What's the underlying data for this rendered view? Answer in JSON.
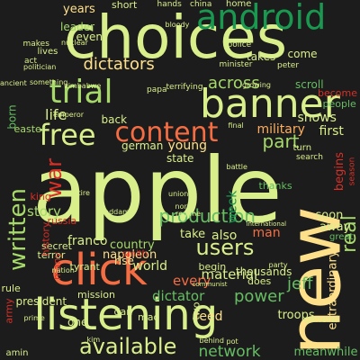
{
  "background": "#1c1c1c",
  "palette": {
    "yellow": "#fee08b",
    "cream": "#ffffbf",
    "pale_green": "#d9ef8b",
    "light_green": "#a6d96a",
    "green": "#66bd63",
    "dark_green": "#1a9850",
    "orange": "#fdae61",
    "red_orange": "#f46d43",
    "red": "#d73027"
  },
  "words": [
    {
      "text": "choices",
      "color": "#d9ef8b",
      "vertical": false
    },
    {
      "text": "apple",
      "color": "#d9ef8b",
      "vertical": false
    },
    {
      "text": "new",
      "color": "#fee08b",
      "vertical": true
    },
    {
      "text": "listening",
      "color": "#d9ef8b",
      "vertical": false
    },
    {
      "text": "banner",
      "color": "#d9ef8b",
      "vertical": false
    },
    {
      "text": "android",
      "color": "#1a9850",
      "vertical": false
    },
    {
      "text": "click",
      "color": "#f46d43",
      "vertical": false
    },
    {
      "text": "trial",
      "color": "#a6d96a",
      "vertical": false
    },
    {
      "text": "free",
      "color": "#d9ef8b",
      "vertical": false
    },
    {
      "text": "content",
      "color": "#f46d43",
      "vertical": false
    },
    {
      "text": "production",
      "color": "#66bd63",
      "vertical": false
    },
    {
      "text": "users",
      "color": "#d9ef8b",
      "vertical": false
    },
    {
      "text": "available",
      "color": "#d9ef8b",
      "vertical": false
    },
    {
      "text": "written",
      "color": "#a6d96a",
      "vertical": true
    },
    {
      "text": "dictators",
      "color": "#fee08b",
      "vertical": false
    },
    {
      "text": "part",
      "color": "#a6d96a",
      "vertical": false
    },
    {
      "text": "war",
      "color": "#d73027",
      "vertical": true
    },
    {
      "text": "across",
      "color": "#a6d96a",
      "vertical": false
    },
    {
      "text": "network",
      "color": "#66bd63",
      "vertical": false
    },
    {
      "text": "power",
      "color": "#66bd63",
      "vertical": false
    },
    {
      "text": "jeff",
      "color": "#66bd63",
      "vertical": false
    },
    {
      "text": "dictator",
      "color": "#66bd63",
      "vertical": false
    },
    {
      "text": "life",
      "color": "#d9ef8b",
      "vertical": false
    },
    {
      "text": "story",
      "color": "#a6d96a",
      "vertical": false
    },
    {
      "text": "shows",
      "color": "#d9ef8b",
      "vertical": false
    },
    {
      "text": "military",
      "color": "#fdae61",
      "vertical": false
    },
    {
      "text": "first",
      "color": "#d9ef8b",
      "vertical": false
    },
    {
      "text": "real",
      "color": "#a6d96a",
      "vertical": true
    },
    {
      "text": "week",
      "color": "#1a9850",
      "vertical": true
    },
    {
      "text": "material",
      "color": "#d9ef8b",
      "vertical": false
    },
    {
      "text": "feed",
      "color": "#fee08b",
      "vertical": false
    },
    {
      "text": "every",
      "color": "#f46d43",
      "vertical": false
    },
    {
      "text": "also",
      "color": "#d9ef8b",
      "vertical": false
    },
    {
      "text": "man",
      "color": "#f46d43",
      "vertical": false
    },
    {
      "text": "world",
      "color": "#d9ef8b",
      "vertical": false
    },
    {
      "text": "country",
      "color": "#a6d96a",
      "vertical": false
    },
    {
      "text": "napoleon",
      "color": "#fee08b",
      "vertical": false
    },
    {
      "text": "franco",
      "color": "#d9ef8b",
      "vertical": false
    },
    {
      "text": "take",
      "color": "#d9ef8b",
      "vertical": false
    },
    {
      "text": "young",
      "color": "#fee08b",
      "vertical": false
    },
    {
      "text": "soon",
      "color": "#d9ef8b",
      "vertical": false
    },
    {
      "text": "away",
      "color": "#d9ef8b",
      "vertical": false
    },
    {
      "text": "troops",
      "color": "#d9ef8b",
      "vertical": false
    },
    {
      "text": "meanwhile",
      "color": "#66bd63",
      "vertical": false
    },
    {
      "text": "extraordinary",
      "color": "#fee08b",
      "vertical": true
    },
    {
      "text": "thousands",
      "color": "#d9ef8b",
      "vertical": false
    },
    {
      "text": "begins",
      "color": "#d73027",
      "vertical": true
    },
    {
      "text": "years",
      "color": "#fee08b",
      "vertical": false
    },
    {
      "text": "leader",
      "color": "#a6d96a",
      "vertical": false
    },
    {
      "text": "even",
      "color": "#d9ef8b",
      "vertical": false
    },
    {
      "text": "takes",
      "color": "#d9ef8b",
      "vertical": false
    },
    {
      "text": "come",
      "color": "#d9ef8b",
      "vertical": false
    },
    {
      "text": "people",
      "color": "#66bd63",
      "vertical": false
    },
    {
      "text": "become",
      "color": "#d73027",
      "vertical": false
    },
    {
      "text": "scroll",
      "color": "#66bd63",
      "vertical": false
    },
    {
      "text": "back",
      "color": "#d9ef8b",
      "vertical": false
    },
    {
      "text": "german",
      "color": "#d9ef8b",
      "vertical": false
    },
    {
      "text": "state",
      "color": "#d9ef8b",
      "vertical": false
    },
    {
      "text": "mission",
      "color": "#d9ef8b",
      "vertical": false
    },
    {
      "text": "president",
      "color": "#d9ef8b",
      "vertical": false
    },
    {
      "text": "one",
      "color": "#d9ef8b",
      "vertical": false
    },
    {
      "text": "rise",
      "color": "#fee08b",
      "vertical": false
    },
    {
      "text": "begin",
      "color": "#d9ef8b",
      "vertical": false
    },
    {
      "text": "does",
      "color": "#d9ef8b",
      "vertical": false
    },
    {
      "text": "secret",
      "color": "#d9ef8b",
      "vertical": false
    },
    {
      "text": "terror",
      "color": "#d9ef8b",
      "vertical": false
    },
    {
      "text": "russia",
      "color": "#d73027",
      "vertical": false
    },
    {
      "text": "tyrant",
      "color": "#d9ef8b",
      "vertical": false
    },
    {
      "text": "smith",
      "color": "#d73027",
      "vertical": false
    },
    {
      "text": "dan",
      "color": "#d9ef8b",
      "vertical": false
    },
    {
      "text": "two",
      "color": "#d9ef8b",
      "vertical": true
    },
    {
      "text": "general",
      "color": "#d9ef8b",
      "vertical": false
    },
    {
      "text": "short",
      "color": "#d9ef8b",
      "vertical": false
    },
    {
      "text": "born",
      "color": "#66bd63",
      "vertical": true
    },
    {
      "text": "king",
      "color": "#d73027",
      "vertical": false
    },
    {
      "text": "mao",
      "color": "#d9ef8b",
      "vertical": false
    },
    {
      "text": "army",
      "color": "#d73027",
      "vertical": true
    },
    {
      "text": "rule",
      "color": "#d9ef8b",
      "vertical": false
    },
    {
      "text": "amin",
      "color": "#d9ef8b",
      "vertical": false
    },
    {
      "text": "history",
      "color": "#d73027",
      "vertical": true
    },
    {
      "text": "many",
      "color": "#d73027",
      "vertical": true
    },
    {
      "text": "great",
      "color": "#66bd63",
      "vertical": false
    },
    {
      "text": "turn",
      "color": "#d9ef8b",
      "vertical": false
    },
    {
      "text": "easter",
      "color": "#a6d96a",
      "vertical": false
    },
    {
      "text": "search",
      "color": "#d9ef8b",
      "vertical": false
    },
    {
      "text": "minister",
      "color": "#d9ef8b",
      "vertical": false
    },
    {
      "text": "home",
      "color": "#d9ef8b",
      "vertical": false
    },
    {
      "text": "china",
      "color": "#d9ef8b",
      "vertical": false
    },
    {
      "text": "hands",
      "color": "#d9ef8b",
      "vertical": false
    },
    {
      "text": "lives",
      "color": "#d9ef8b",
      "vertical": false
    },
    {
      "text": "makes",
      "color": "#d9ef8b",
      "vertical": false
    },
    {
      "text": "act",
      "color": "#d9ef8b",
      "vertical": false
    },
    {
      "text": "politician",
      "color": "#d9ef8b",
      "vertical": false
    },
    {
      "text": "papa",
      "color": "#d9ef8b",
      "vertical": false
    },
    {
      "text": "police",
      "color": "#d9ef8b",
      "vertical": false
    },
    {
      "text": "peter",
      "color": "#d9ef8b",
      "vertical": false
    },
    {
      "text": "nuclear",
      "color": "#d9ef8b",
      "vertical": false
    },
    {
      "text": "bloody",
      "color": "#d9ef8b",
      "vertical": false
    },
    {
      "text": "growing",
      "color": "#d9ef8b",
      "vertical": false
    },
    {
      "text": "emperor",
      "color": "#d9ef8b",
      "vertical": false
    },
    {
      "text": "terrifying",
      "color": "#d9ef8b",
      "vertical": false
    },
    {
      "text": "something",
      "color": "#d9ef8b",
      "vertical": false
    },
    {
      "text": "zimbabwe",
      "color": "#d9ef8b",
      "vertical": false
    },
    {
      "text": "final",
      "color": "#d9ef8b",
      "vertical": false
    },
    {
      "text": "battle",
      "color": "#d9ef8b",
      "vertical": false
    },
    {
      "text": "north",
      "color": "#d9ef8b",
      "vertical": false
    },
    {
      "text": "regime",
      "color": "#d9ef8b",
      "vertical": false
    },
    {
      "text": "union",
      "color": "#d9ef8b",
      "vertical": false
    },
    {
      "text": "international",
      "color": "#d9ef8b",
      "vertical": false
    },
    {
      "text": "entire",
      "color": "#d9ef8b",
      "vertical": false
    },
    {
      "text": "nation",
      "color": "#d9ef8b",
      "vertical": false
    },
    {
      "text": "communist",
      "color": "#d9ef8b",
      "vertical": false
    },
    {
      "text": "prime",
      "color": "#d9ef8b",
      "vertical": false
    },
    {
      "text": "behind",
      "color": "#d9ef8b",
      "vertical": false
    },
    {
      "text": "pot",
      "color": "#d9ef8b",
      "vertical": false
    },
    {
      "text": "season",
      "color": "#d73027",
      "vertical": true
    },
    {
      "text": "party",
      "color": "#d9ef8b",
      "vertical": false
    },
    {
      "text": "saddam",
      "color": "#d9ef8b",
      "vertical": false
    },
    {
      "text": "ancient",
      "color": "#d9ef8b",
      "vertical": false
    },
    {
      "text": "kim",
      "color": "#d9ef8b",
      "vertical": false
    },
    {
      "text": "thanks",
      "color": "#66bd63",
      "vertical": false
    }
  ]
}
